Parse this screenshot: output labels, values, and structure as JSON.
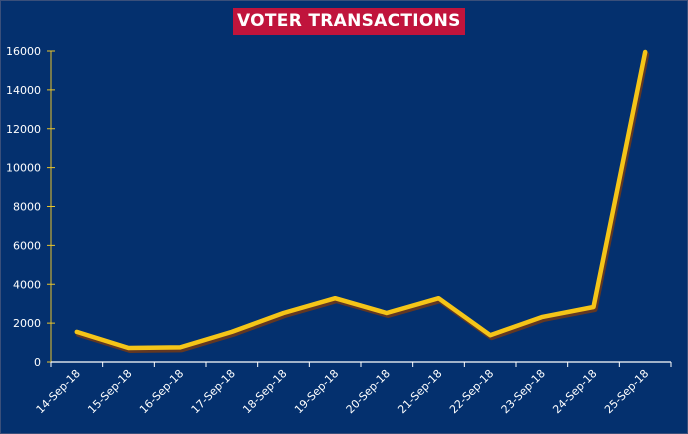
{
  "title": "VOTER TRANSACTIONS",
  "colors": {
    "background": "#04306e",
    "title_bg": "#c0143c",
    "line": "#f5c518",
    "line_shadow": "#7a3a10",
    "axis_y": "#e8c42c",
    "axis_x": "#ffffff",
    "drop_line": "#ffffff"
  },
  "chart_data": {
    "type": "line",
    "title": "VOTER TRANSACTIONS",
    "xlabel": "",
    "ylabel": "",
    "categories": [
      "14-Sep-18",
      "15-Sep-18",
      "16-Sep-18",
      "17-Sep-18",
      "18-Sep-18",
      "19-Sep-18",
      "20-Sep-18",
      "21-Sep-18",
      "22-Sep-18",
      "23-Sep-18",
      "24-Sep-18",
      "25-Sep-18"
    ],
    "series": [
      {
        "name": "Voter Transactions",
        "values": [
          1550,
          720,
          750,
          1550,
          2520,
          3280,
          2520,
          3280,
          1380,
          2310,
          2830,
          15950
        ]
      }
    ],
    "ylim": [
      0,
      16000
    ],
    "yticks": [
      0,
      2000,
      4000,
      6000,
      8000,
      10000,
      12000,
      14000,
      16000
    ],
    "grid": false,
    "legend": "none",
    "drop_lines": true
  }
}
